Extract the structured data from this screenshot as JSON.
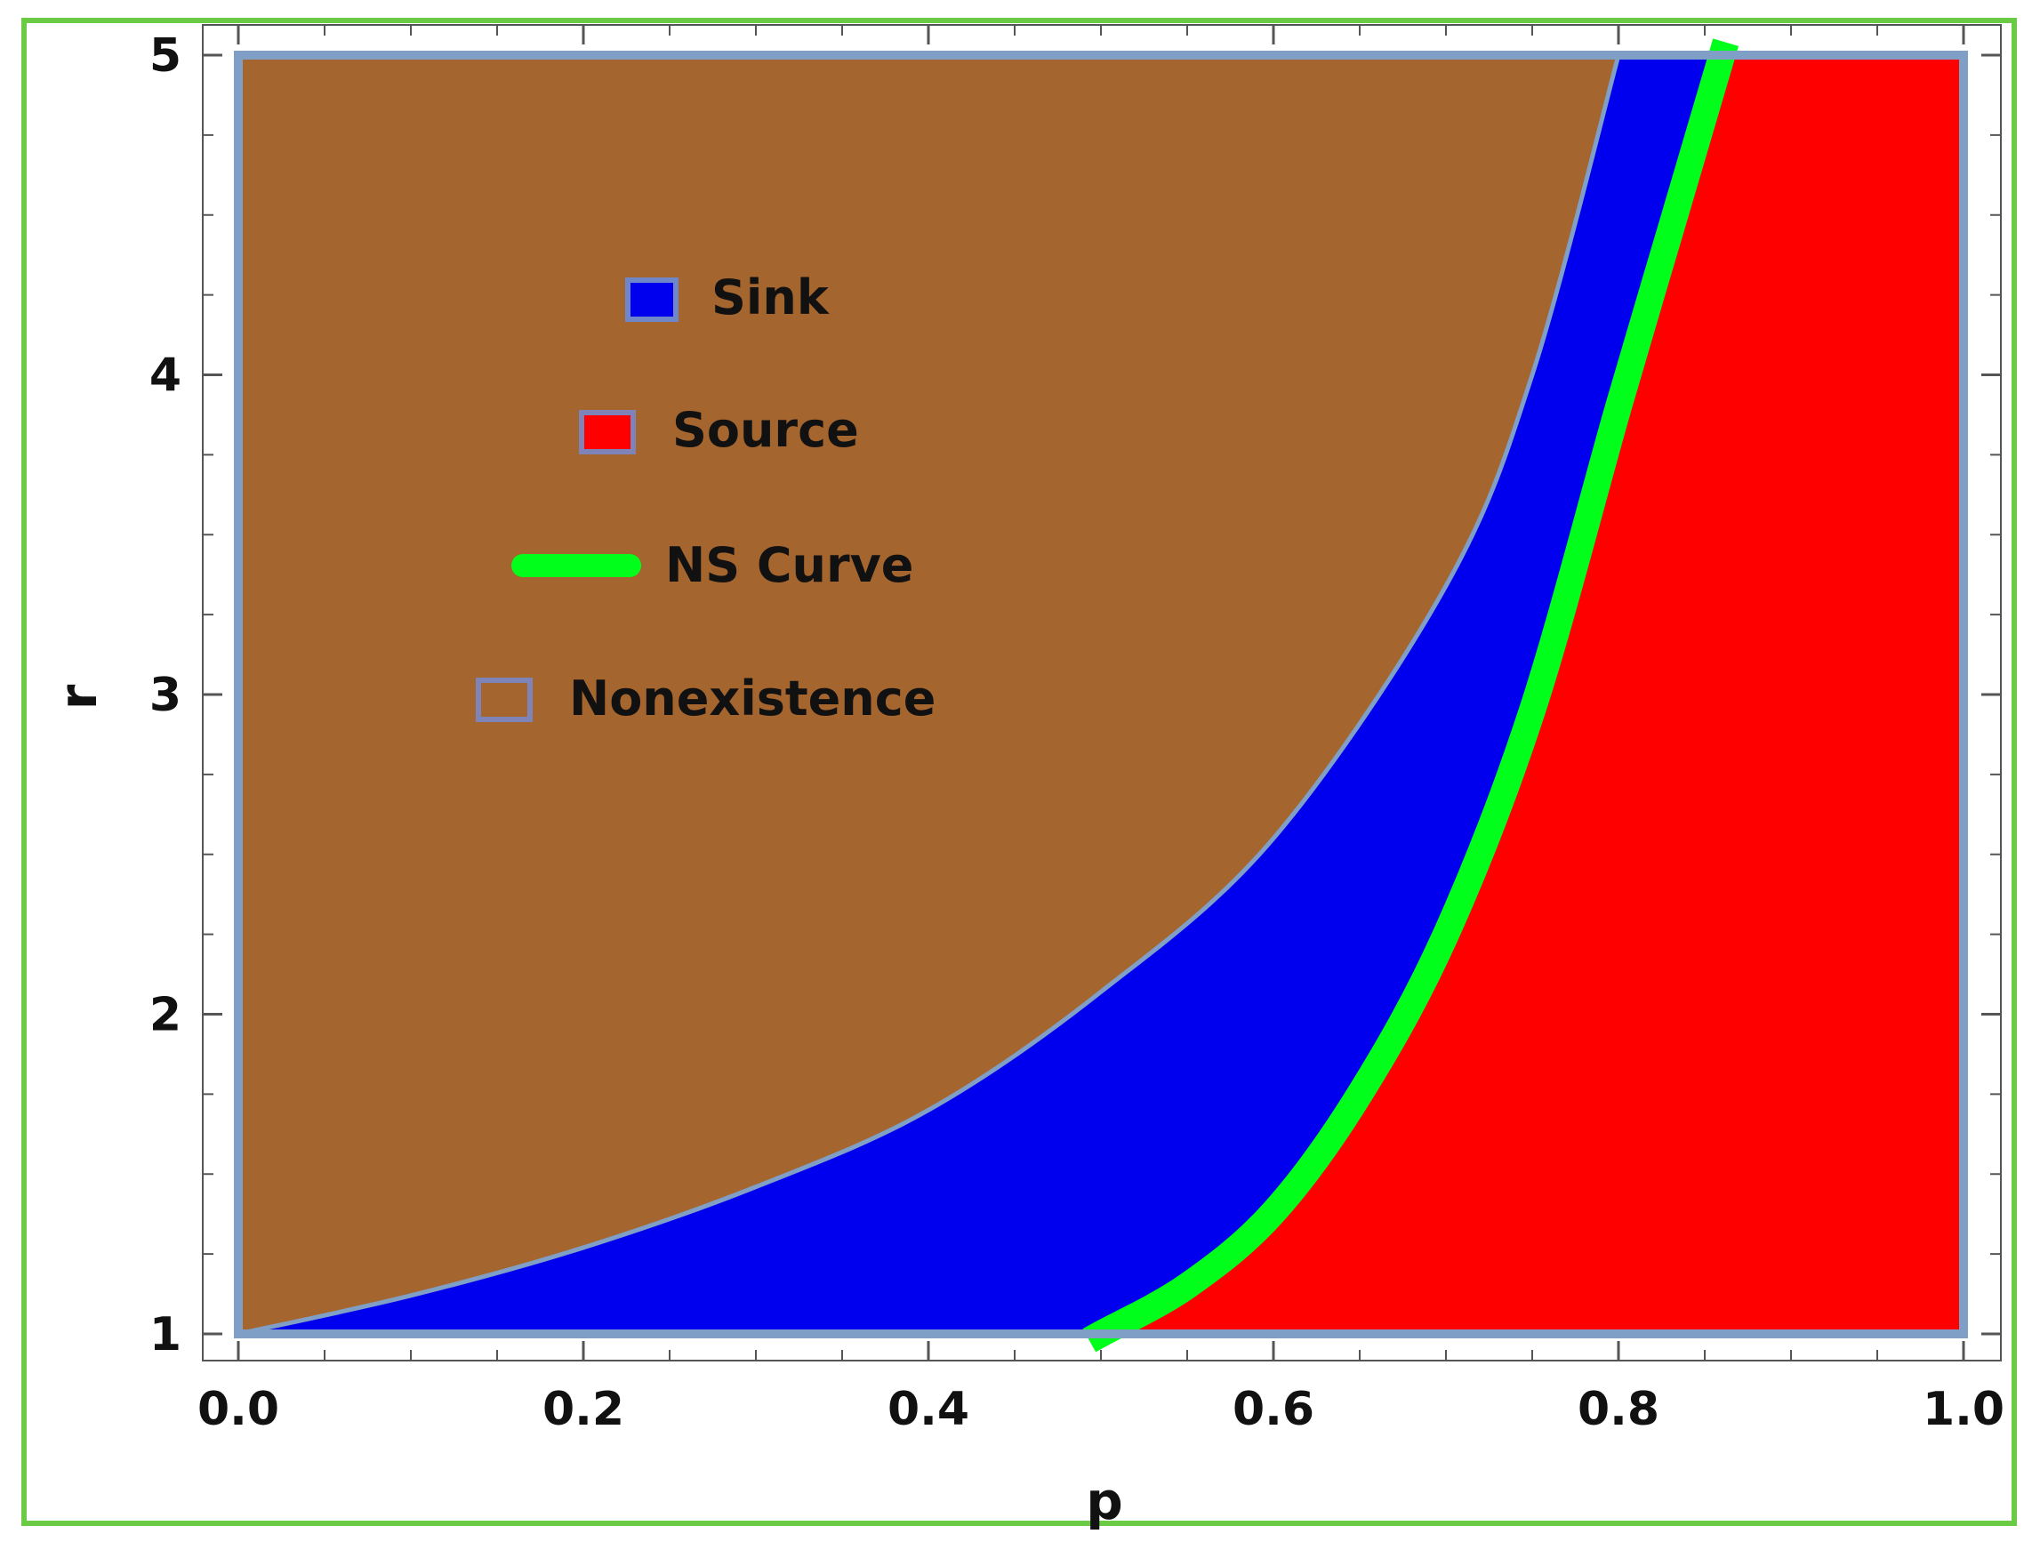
{
  "chart_data": {
    "type": "area",
    "title": "",
    "xlabel": "p",
    "ylabel": "r",
    "xlim": [
      0.0,
      1.0
    ],
    "ylim": [
      1.0,
      5.0
    ],
    "x_ticks": [
      "0.0",
      "0.2",
      "0.4",
      "0.6",
      "0.8",
      "1.0"
    ],
    "y_ticks": [
      "1",
      "2",
      "3",
      "4",
      "5"
    ],
    "grid": false,
    "legend_placement": "upper-left inside plot",
    "regions": [
      {
        "name": "Nonexistence",
        "color": "#a5652f",
        "description_points": [
          [
            0.0,
            1.0
          ],
          [
            0.1,
            1.12
          ],
          [
            0.2,
            1.27
          ],
          [
            0.3,
            1.46
          ],
          [
            0.4,
            1.7
          ],
          [
            0.5,
            2.07
          ],
          [
            0.6,
            2.55
          ],
          [
            0.7,
            3.34
          ],
          [
            0.75,
            4.0
          ],
          [
            0.8,
            5.0
          ]
        ]
      },
      {
        "name": "Sink",
        "color": "#0000ee"
      },
      {
        "name": "Source",
        "color": "#ff0000"
      }
    ],
    "series": [
      {
        "name": "NS Curve",
        "color": "#00ff1a",
        "x": [
          0.5,
          0.55,
          0.6,
          0.65,
          0.7,
          0.75,
          0.8,
          0.83,
          0.86
        ],
        "y": [
          1.0,
          1.15,
          1.38,
          1.75,
          2.25,
          2.95,
          3.9,
          4.45,
          5.0
        ]
      }
    ],
    "sink_boundary": {
      "x": [
        0.0,
        0.1,
        0.2,
        0.3,
        0.4,
        0.5,
        0.6,
        0.7,
        0.75,
        0.8
      ],
      "y": [
        1.0,
        1.12,
        1.27,
        1.46,
        1.7,
        2.07,
        2.55,
        3.34,
        4.0,
        5.0
      ]
    },
    "legend": [
      {
        "label": "Sink",
        "color": "#0000ee",
        "marker": "square"
      },
      {
        "label": "Source",
        "color": "#ff0000",
        "marker": "square"
      },
      {
        "label": "NS Curve",
        "color": "#00ff1a",
        "marker": "line"
      },
      {
        "label": "Nonexistence",
        "color": "#a5652f",
        "marker": "square"
      }
    ]
  },
  "colors": {
    "frame_border": "#6ccb45",
    "plot_border": "#7f9fc6"
  }
}
